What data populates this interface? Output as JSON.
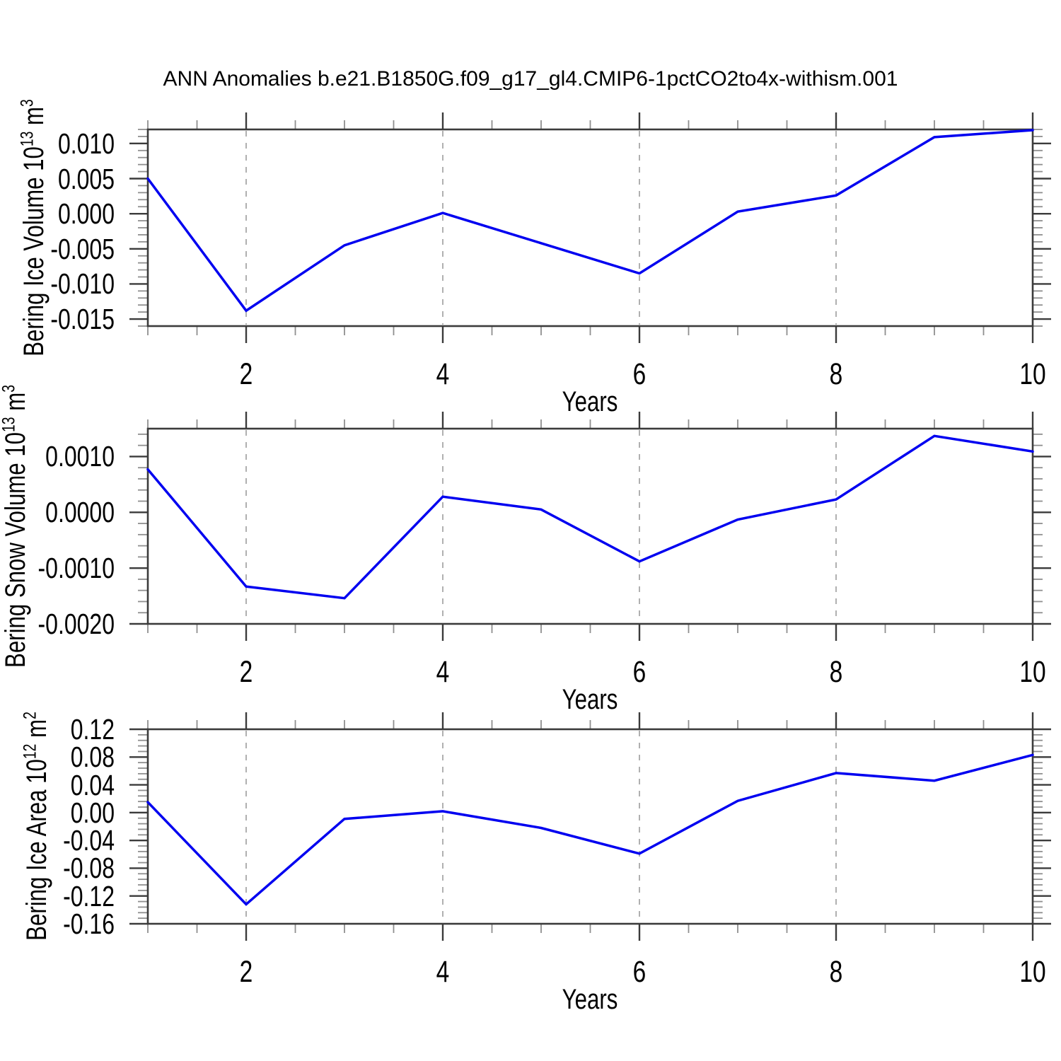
{
  "title": "ANN Anomalies b.e21.B1850G.f09_g17_gl4.CMIP6-1pctCO2to4x-withism.001",
  "line_color": "#0000f0",
  "chart_data": [
    {
      "type": "line",
      "ylabel_prefix": "Bering Ice Volume 10",
      "ylabel_exp": "13",
      "ylabel_unit": " m",
      "ylabel_unit_exp": "3",
      "xlabel": "Years",
      "x": [
        1,
        2,
        3,
        4,
        5,
        6,
        7,
        8,
        9,
        10
      ],
      "values": [
        0.005,
        -0.0138,
        -0.0045,
        0.0001,
        -0.0042,
        -0.0085,
        0.0003,
        0.0026,
        0.0109,
        0.0119
      ],
      "xlim": [
        1,
        10
      ],
      "ylim": [
        -0.016,
        0.012
      ],
      "yticks": [
        {
          "v": 0.01,
          "label": "0.010"
        },
        {
          "v": 0.005,
          "label": "0.005"
        },
        {
          "v": 0.0,
          "label": "0.000"
        },
        {
          "v": -0.005,
          "label": "-0.005"
        },
        {
          "v": -0.01,
          "label": "-0.010"
        },
        {
          "v": -0.015,
          "label": "-0.015"
        }
      ],
      "yminor_step": 0.001,
      "xticks": [
        {
          "v": 2,
          "label": "2"
        },
        {
          "v": 4,
          "label": "4"
        },
        {
          "v": 6,
          "label": "6"
        },
        {
          "v": 8,
          "label": "8"
        },
        {
          "v": 10,
          "label": "10"
        }
      ],
      "xminor_step": 0.5,
      "grid_x": [
        2,
        4,
        6,
        8
      ],
      "grid_on": true,
      "legend": "none"
    },
    {
      "type": "line",
      "ylabel_prefix": "Bering Snow Volume 10",
      "ylabel_exp": "13",
      "ylabel_unit": " m",
      "ylabel_unit_exp": "3",
      "xlabel": "Years",
      "x": [
        1,
        2,
        3,
        4,
        5,
        6,
        7,
        8,
        9,
        10
      ],
      "values": [
        0.00077,
        -0.00133,
        -0.00154,
        0.00028,
        5e-05,
        -0.00088,
        -0.00013,
        0.00023,
        0.00137,
        0.00109
      ],
      "xlim": [
        1,
        10
      ],
      "ylim": [
        -0.002,
        0.0015
      ],
      "yticks": [
        {
          "v": 0.001,
          "label": "0.0010"
        },
        {
          "v": 0.0,
          "label": "0.0000"
        },
        {
          "v": -0.001,
          "label": "-0.0010"
        },
        {
          "v": -0.002,
          "label": "-0.0020"
        }
      ],
      "yminor_step": 0.0002,
      "xticks": [
        {
          "v": 2,
          "label": "2"
        },
        {
          "v": 4,
          "label": "4"
        },
        {
          "v": 6,
          "label": "6"
        },
        {
          "v": 8,
          "label": "8"
        },
        {
          "v": 10,
          "label": "10"
        }
      ],
      "xminor_step": 0.5,
      "grid_x": [
        2,
        4,
        6,
        8
      ],
      "grid_on": true,
      "legend": "none"
    },
    {
      "type": "line",
      "ylabel_prefix": "Bering Ice Area 10",
      "ylabel_exp": "12",
      "ylabel_unit": " m",
      "ylabel_unit_exp": "2",
      "xlabel": "Years",
      "x": [
        1,
        2,
        3,
        4,
        5,
        6,
        7,
        8,
        9,
        10
      ],
      "values": [
        0.015,
        -0.132,
        -0.009,
        0.002,
        -0.022,
        -0.059,
        0.017,
        0.057,
        0.046,
        0.083
      ],
      "xlim": [
        1,
        10
      ],
      "ylim": [
        -0.16,
        0.12
      ],
      "yticks": [
        {
          "v": 0.12,
          "label": "0.12"
        },
        {
          "v": 0.08,
          "label": "0.08"
        },
        {
          "v": 0.04,
          "label": "0.04"
        },
        {
          "v": 0.0,
          "label": "0.00"
        },
        {
          "v": -0.04,
          "label": "-0.04"
        },
        {
          "v": -0.08,
          "label": "-0.08"
        },
        {
          "v": -0.12,
          "label": "-0.12"
        },
        {
          "v": -0.16,
          "label": "-0.16"
        }
      ],
      "yminor_step": 0.008,
      "xticks": [
        {
          "v": 2,
          "label": "2"
        },
        {
          "v": 4,
          "label": "4"
        },
        {
          "v": 6,
          "label": "6"
        },
        {
          "v": 8,
          "label": "8"
        },
        {
          "v": 10,
          "label": "10"
        }
      ],
      "xminor_step": 0.5,
      "grid_x": [
        2,
        4,
        6,
        8
      ],
      "grid_on": true,
      "legend": "none"
    }
  ]
}
